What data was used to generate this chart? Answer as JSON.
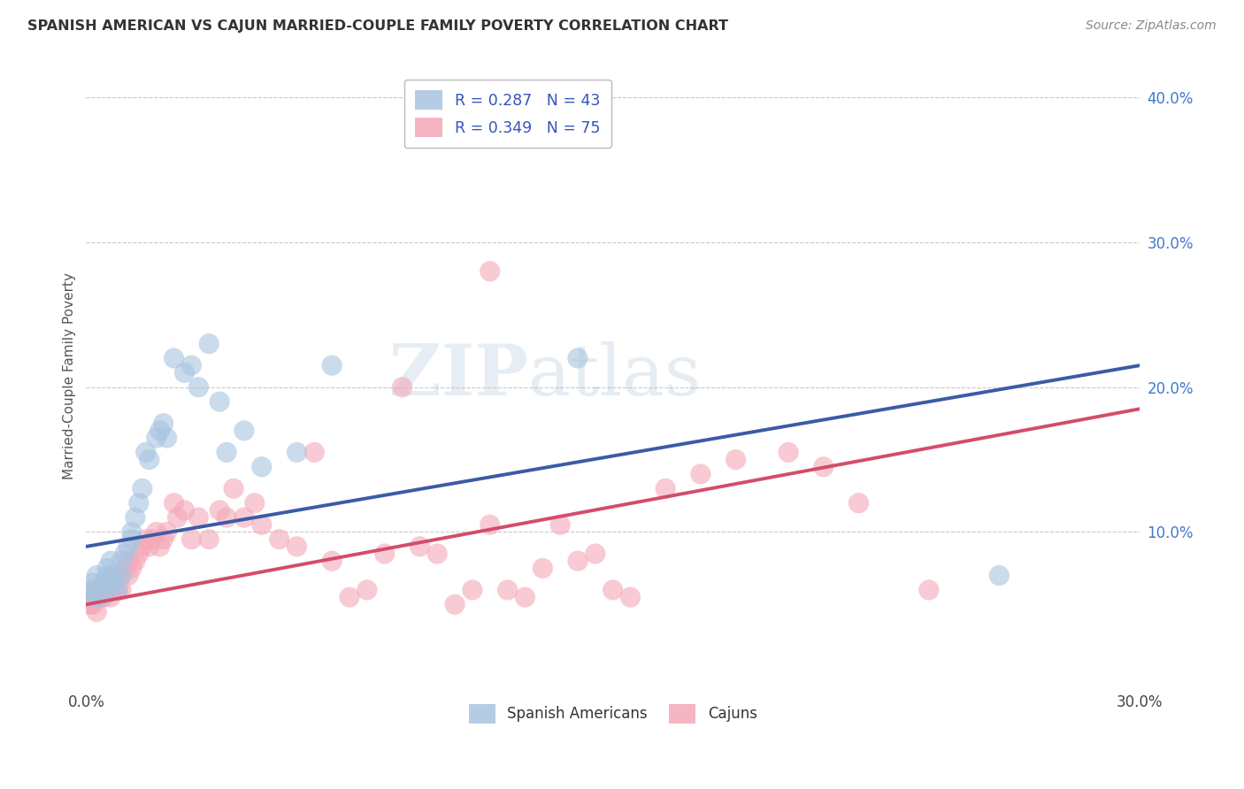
{
  "title": "SPANISH AMERICAN VS CAJUN MARRIED-COUPLE FAMILY POVERTY CORRELATION CHART",
  "source": "Source: ZipAtlas.com",
  "ylabel": "Married-Couple Family Poverty",
  "xlabel": "",
  "watermark_zip": "ZIP",
  "watermark_atlas": "atlas",
  "legend_blue_label": "R = 0.287   N = 43",
  "legend_pink_label": "R = 0.349   N = 75",
  "bottom_legend_blue": "Spanish Americans",
  "bottom_legend_pink": "Cajuns",
  "xlim": [
    0.0,
    0.3
  ],
  "ylim": [
    -0.005,
    0.42
  ],
  "xticks": [
    0.0,
    0.05,
    0.1,
    0.15,
    0.2,
    0.25,
    0.3
  ],
  "xtick_labels": [
    "0.0%",
    "",
    "",
    "",
    "",
    "",
    "30.0%"
  ],
  "yticks_right": [
    0.1,
    0.2,
    0.3,
    0.4
  ],
  "ytick_labels_right": [
    "10.0%",
    "20.0%",
    "30.0%",
    "40.0%"
  ],
  "yticks_grid": [
    0.1,
    0.2,
    0.3,
    0.4
  ],
  "blue_color": "#A8C4E0",
  "pink_color": "#F4A8B8",
  "blue_line_color": "#3B5BA5",
  "pink_line_color": "#D44C6A",
  "grid_color": "#C8C8C8",
  "background_color": "#FFFFFF",
  "blue_scatter_x": [
    0.001,
    0.002,
    0.002,
    0.003,
    0.003,
    0.004,
    0.005,
    0.005,
    0.006,
    0.006,
    0.007,
    0.007,
    0.008,
    0.008,
    0.009,
    0.01,
    0.01,
    0.011,
    0.012,
    0.013,
    0.013,
    0.014,
    0.015,
    0.016,
    0.017,
    0.018,
    0.02,
    0.021,
    0.022,
    0.023,
    0.025,
    0.028,
    0.03,
    0.032,
    0.035,
    0.038,
    0.04,
    0.045,
    0.05,
    0.06,
    0.07,
    0.14,
    0.26
  ],
  "blue_scatter_y": [
    0.06,
    0.065,
    0.055,
    0.07,
    0.06,
    0.055,
    0.065,
    0.06,
    0.07,
    0.075,
    0.065,
    0.08,
    0.07,
    0.065,
    0.06,
    0.08,
    0.07,
    0.085,
    0.09,
    0.095,
    0.1,
    0.11,
    0.12,
    0.13,
    0.155,
    0.15,
    0.165,
    0.17,
    0.175,
    0.165,
    0.22,
    0.21,
    0.215,
    0.2,
    0.23,
    0.19,
    0.155,
    0.17,
    0.145,
    0.155,
    0.215,
    0.22,
    0.07
  ],
  "pink_scatter_x": [
    0.001,
    0.001,
    0.002,
    0.002,
    0.003,
    0.003,
    0.004,
    0.004,
    0.005,
    0.005,
    0.006,
    0.006,
    0.007,
    0.007,
    0.008,
    0.008,
    0.009,
    0.009,
    0.01,
    0.01,
    0.011,
    0.012,
    0.012,
    0.013,
    0.014,
    0.015,
    0.016,
    0.017,
    0.018,
    0.019,
    0.02,
    0.021,
    0.022,
    0.023,
    0.025,
    0.026,
    0.028,
    0.03,
    0.032,
    0.035,
    0.038,
    0.04,
    0.042,
    0.045,
    0.048,
    0.05,
    0.055,
    0.06,
    0.065,
    0.07,
    0.075,
    0.08,
    0.085,
    0.09,
    0.095,
    0.1,
    0.105,
    0.11,
    0.115,
    0.12,
    0.125,
    0.13,
    0.135,
    0.14,
    0.145,
    0.15,
    0.155,
    0.165,
    0.175,
    0.185,
    0.2,
    0.21,
    0.22,
    0.24,
    0.115
  ],
  "pink_scatter_y": [
    0.05,
    0.055,
    0.05,
    0.06,
    0.045,
    0.055,
    0.055,
    0.06,
    0.055,
    0.065,
    0.06,
    0.065,
    0.055,
    0.065,
    0.06,
    0.07,
    0.06,
    0.07,
    0.06,
    0.07,
    0.075,
    0.07,
    0.08,
    0.075,
    0.08,
    0.085,
    0.09,
    0.095,
    0.09,
    0.095,
    0.1,
    0.09,
    0.095,
    0.1,
    0.12,
    0.11,
    0.115,
    0.095,
    0.11,
    0.095,
    0.115,
    0.11,
    0.13,
    0.11,
    0.12,
    0.105,
    0.095,
    0.09,
    0.155,
    0.08,
    0.055,
    0.06,
    0.085,
    0.2,
    0.09,
    0.085,
    0.05,
    0.06,
    0.105,
    0.06,
    0.055,
    0.075,
    0.105,
    0.08,
    0.085,
    0.06,
    0.055,
    0.13,
    0.14,
    0.15,
    0.155,
    0.145,
    0.12,
    0.06,
    0.28
  ],
  "blue_line_x0": 0.0,
  "blue_line_y0": 0.09,
  "blue_line_x1": 0.3,
  "blue_line_y1": 0.215,
  "pink_line_x0": 0.0,
  "pink_line_y0": 0.05,
  "pink_line_x1": 0.3,
  "pink_line_y1": 0.185
}
